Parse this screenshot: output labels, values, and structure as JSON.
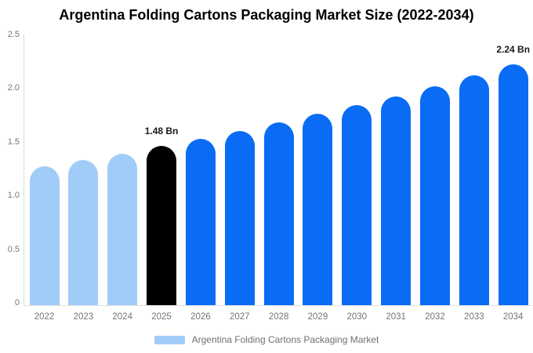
{
  "title": "Argentina Folding Cartons Packaging Market Size (2022-2034)",
  "legend": {
    "label": "Argentina Folding Cartons Packaging Market"
  },
  "colors": {
    "historical_bar": "#A2CCF8",
    "highlight_bar": "#000000",
    "forecast_bar": "#0A6CF5",
    "y_axis_line": "#DCDCDC",
    "x_axis_line": "#E0E0E0",
    "tick_text": "#757575",
    "data_label_text": "#1A1A1A",
    "legend_text": "#707070",
    "title_text": "#000000"
  },
  "y_axis": {
    "tick_labels": [
      "2.5",
      "2.0",
      "1.5",
      "1.0",
      "0.5",
      "0"
    ],
    "tick_values": [
      2.5,
      2.0,
      1.5,
      1.0,
      0.5,
      0
    ]
  },
  "chart_data": {
    "type": "bar",
    "title": "Argentina Folding Cartons Packaging Market Size (2022-2034)",
    "xlabel": "",
    "ylabel": "",
    "unit": "Bn",
    "ylim": [
      0,
      2.5
    ],
    "grid": false,
    "legend_position": "bottom",
    "legend_entries": [
      "Argentina Folding Cartons Packaging Market"
    ],
    "categories": [
      "2022",
      "2023",
      "2024",
      "2025",
      "2026",
      "2027",
      "2028",
      "2029",
      "2030",
      "2031",
      "2032",
      "2033",
      "2034"
    ],
    "values": [
      1.29,
      1.35,
      1.41,
      1.48,
      1.55,
      1.62,
      1.7,
      1.78,
      1.86,
      1.94,
      2.04,
      2.14,
      2.24
    ],
    "color_groups": [
      "historical",
      "historical",
      "historical",
      "highlight",
      "forecast",
      "forecast",
      "forecast",
      "forecast",
      "forecast",
      "forecast",
      "forecast",
      "forecast",
      "forecast"
    ],
    "annotations": [
      {
        "category": "2025",
        "label": "1.48 Bn"
      },
      {
        "category": "2034",
        "label": "2.24 Bn"
      }
    ]
  }
}
